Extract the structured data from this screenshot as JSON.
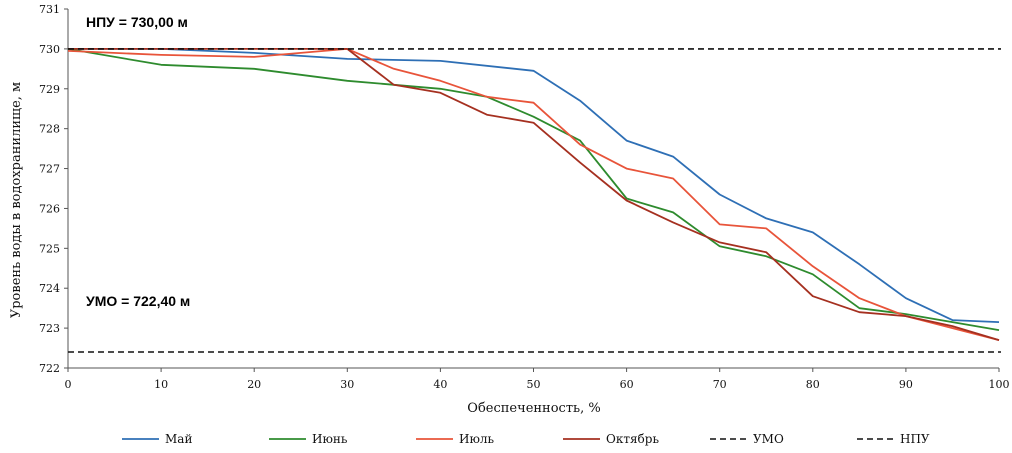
{
  "chart_data": {
    "type": "line",
    "xlabel": "Обеспеченность, %",
    "ylabel": "Уровень воды в водохранилище, м",
    "xlim": [
      0,
      100
    ],
    "ylim": [
      722,
      731
    ],
    "x_ticks": [
      "0",
      "10",
      "20",
      "30",
      "40",
      "50",
      "60",
      "70",
      "80",
      "90",
      "100"
    ],
    "y_ticks": [
      "722",
      "723",
      "724",
      "725",
      "726",
      "727",
      "728",
      "729",
      "730",
      "731"
    ],
    "grid": false,
    "legend_position": "bottom",
    "annotations": {
      "npu": "НПУ = 730,00 м",
      "umo": "УМО = 722,40 м"
    },
    "series": [
      {
        "name": "Май",
        "color": "#2e6fb5",
        "style": "solid",
        "x": [
          0,
          10,
          20,
          30,
          40,
          50,
          55,
          60,
          65,
          70,
          75,
          80,
          85,
          90,
          95,
          100
        ],
        "y": [
          730.0,
          730.0,
          729.9,
          729.75,
          729.7,
          729.45,
          728.7,
          727.7,
          727.3,
          726.35,
          725.75,
          725.4,
          724.6,
          723.75,
          723.2,
          723.15
        ]
      },
      {
        "name": "Июнь",
        "color": "#2e8b2e",
        "style": "solid",
        "x": [
          0,
          10,
          20,
          30,
          40,
          45,
          50,
          55,
          60,
          65,
          70,
          75,
          80,
          85,
          90,
          95,
          100
        ],
        "y": [
          730.0,
          729.6,
          729.5,
          729.2,
          729.0,
          728.8,
          728.3,
          727.7,
          726.25,
          725.9,
          725.05,
          724.8,
          724.35,
          723.5,
          723.35,
          723.15,
          722.95
        ]
      },
      {
        "name": "Июль",
        "color": "#e8543a",
        "style": "solid",
        "x": [
          0,
          10,
          20,
          30,
          35,
          40,
          45,
          50,
          55,
          60,
          65,
          70,
          75,
          80,
          85,
          90,
          95,
          100
        ],
        "y": [
          729.95,
          729.85,
          729.8,
          730.0,
          729.5,
          729.2,
          728.8,
          728.65,
          727.6,
          727.0,
          726.75,
          725.6,
          725.5,
          724.55,
          723.75,
          723.3,
          723.0,
          722.7
        ]
      },
      {
        "name": "Октябрь",
        "color": "#a53020",
        "style": "solid",
        "x": [
          0,
          10,
          20,
          30,
          35,
          40,
          45,
          50,
          55,
          60,
          65,
          70,
          75,
          80,
          85,
          90,
          95,
          100
        ],
        "y": [
          730.0,
          730.0,
          730.0,
          730.0,
          729.1,
          728.9,
          728.35,
          728.15,
          727.15,
          726.2,
          725.65,
          725.15,
          724.9,
          723.8,
          723.4,
          723.3,
          723.05,
          722.7
        ]
      },
      {
        "name": "УМО",
        "color": "#111111",
        "style": "dashed",
        "x": [
          0,
          100
        ],
        "y": [
          722.4,
          722.4
        ]
      },
      {
        "name": "НПУ",
        "color": "#111111",
        "style": "dashed",
        "x": [
          0,
          100
        ],
        "y": [
          730.0,
          730.0
        ]
      }
    ]
  }
}
